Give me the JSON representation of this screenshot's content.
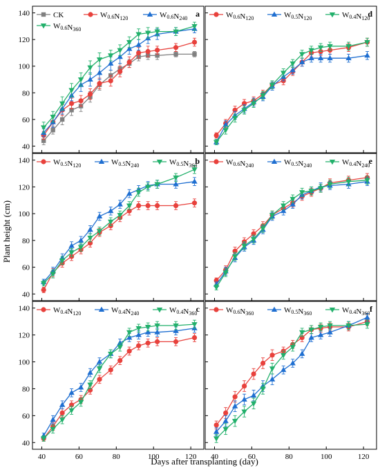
{
  "figure": {
    "xlabel": "Days after transplanting (day)",
    "ylabel": "Plant height (cm)"
  },
  "chart_data": [
    {
      "type": "line",
      "label": "a",
      "xlim": [
        35,
        127
      ],
      "ylim": [
        35,
        145
      ],
      "yticks": [
        "40",
        "60",
        "80",
        "100",
        "120",
        "140"
      ],
      "xticks": [
        "40",
        "60",
        "80",
        "100",
        "120"
      ],
      "x": [
        41,
        46,
        51,
        56,
        61,
        66,
        71,
        77,
        82,
        87,
        92,
        97,
        102,
        112,
        122
      ],
      "series": [
        {
          "name": "CK",
          "color": "#808080",
          "marker": "square",
          "values": [
            44,
            52,
            60,
            67,
            70,
            77,
            86,
            93,
            98,
            102,
            107,
            108,
            108,
            109,
            109
          ],
          "errors": [
            3,
            3,
            4,
            4,
            4,
            4,
            4,
            4,
            4,
            3,
            3,
            3,
            3,
            2,
            2
          ]
        },
        {
          "name": "W0.6N120",
          "color": "#e8413c",
          "marker": "circle",
          "values": [
            48,
            58,
            67,
            72,
            74,
            79,
            87,
            89,
            96,
            103,
            110,
            111,
            112,
            114,
            118
          ],
          "errors": [
            3,
            4,
            4,
            4,
            4,
            4,
            4,
            4,
            4,
            4,
            4,
            4,
            3,
            3,
            3
          ]
        },
        {
          "name": "W0.6N240",
          "color": "#1f6fd1",
          "marker": "triangle-up",
          "values": [
            50,
            58,
            68,
            78,
            86,
            90,
            95,
            102,
            107,
            113,
            116,
            121,
            124,
            126,
            128
          ],
          "errors": [
            3,
            4,
            4,
            4,
            5,
            5,
            5,
            5,
            5,
            4,
            4,
            4,
            4,
            3,
            3
          ]
        },
        {
          "name": "W0.6N360",
          "color": "#22b06b",
          "marker": "triangle-down",
          "values": [
            54,
            62,
            72,
            82,
            90,
            99,
            105,
            108,
            112,
            118,
            124,
            125,
            126,
            126,
            130
          ],
          "errors": [
            4,
            4,
            5,
            5,
            5,
            5,
            5,
            4,
            4,
            4,
            4,
            4,
            3,
            3,
            3
          ]
        }
      ]
    },
    {
      "type": "line",
      "label": "d",
      "xlim": [
        35,
        127
      ],
      "ylim": [
        35,
        145
      ],
      "yticks": [
        "40",
        "60",
        "80",
        "100",
        "120",
        "140"
      ],
      "xticks": [
        "40",
        "60",
        "80",
        "100",
        "120"
      ],
      "x": [
        41,
        46,
        51,
        56,
        61,
        66,
        71,
        77,
        82,
        87,
        92,
        97,
        102,
        112,
        122
      ],
      "series": [
        {
          "name": "W0.6N120",
          "color": "#e8413c",
          "marker": "circle",
          "values": [
            48,
            57,
            67,
            72,
            74,
            79,
            86,
            89,
            96,
            103,
            110,
            111,
            112,
            114,
            118
          ],
          "errors": [
            2,
            3,
            3,
            3,
            3,
            3,
            3,
            3,
            3,
            3,
            3,
            3,
            3,
            3,
            3
          ]
        },
        {
          "name": "W0.5N120",
          "color": "#1f6fd1",
          "marker": "triangle-up",
          "values": [
            43,
            56,
            63,
            68,
            73,
            77,
            85,
            92,
            97,
            103,
            106,
            106,
            106,
            106,
            108
          ],
          "errors": [
            2,
            3,
            3,
            3,
            3,
            3,
            3,
            3,
            3,
            3,
            3,
            3,
            3,
            3,
            3
          ]
        },
        {
          "name": "W0.4N120",
          "color": "#22b06b",
          "marker": "triangle-down",
          "values": [
            43,
            52,
            61,
            67,
            72,
            78,
            86,
            95,
            102,
            109,
            112,
            114,
            115,
            115,
            118
          ],
          "errors": [
            2,
            3,
            3,
            3,
            3,
            3,
            3,
            3,
            3,
            3,
            3,
            3,
            3,
            3,
            3
          ]
        }
      ]
    },
    {
      "type": "line",
      "label": "b",
      "xlim": [
        35,
        127
      ],
      "ylim": [
        35,
        145
      ],
      "yticks": [
        "40",
        "60",
        "80",
        "100",
        "120",
        "140"
      ],
      "xticks": [
        "40",
        "60",
        "80",
        "100",
        "120"
      ],
      "x": [
        41,
        46,
        51,
        56,
        61,
        66,
        71,
        77,
        82,
        87,
        92,
        97,
        102,
        112,
        122
      ],
      "series": [
        {
          "name": "W0.5N120",
          "color": "#e8413c",
          "marker": "circle",
          "values": [
            43,
            56,
            63,
            68,
            73,
            78,
            86,
            91,
            97,
            102,
            106,
            106,
            106,
            106,
            108
          ],
          "errors": [
            2,
            3,
            3,
            3,
            3,
            3,
            3,
            3,
            3,
            3,
            3,
            3,
            3,
            3,
            3
          ]
        },
        {
          "name": "W0.5N240",
          "color": "#1f6fd1",
          "marker": "triangle-up",
          "values": [
            49,
            57,
            67,
            76,
            80,
            88,
            98,
            102,
            107,
            115,
            118,
            121,
            122,
            122,
            124
          ],
          "errors": [
            2,
            3,
            3,
            3,
            3,
            3,
            3,
            3,
            3,
            3,
            3,
            3,
            3,
            3,
            3
          ]
        },
        {
          "name": "W0.5N360",
          "color": "#22b06b",
          "marker": "triangle-down",
          "values": [
            48,
            55,
            65,
            71,
            75,
            82,
            87,
            94,
            99,
            106,
            116,
            120,
            122,
            127,
            133
          ],
          "errors": [
            2,
            3,
            3,
            3,
            3,
            3,
            3,
            3,
            3,
            3,
            3,
            3,
            3,
            3,
            3
          ]
        }
      ]
    },
    {
      "type": "line",
      "label": "e",
      "xlim": [
        35,
        127
      ],
      "ylim": [
        35,
        145
      ],
      "yticks": [
        "40",
        "60",
        "80",
        "100",
        "120",
        "140"
      ],
      "xticks": [
        "40",
        "60",
        "80",
        "100",
        "120"
      ],
      "x": [
        41,
        46,
        51,
        56,
        61,
        66,
        71,
        77,
        82,
        87,
        92,
        97,
        102,
        112,
        122
      ],
      "series": [
        {
          "name": "W0.6N240",
          "color": "#e8413c",
          "marker": "circle",
          "values": [
            50,
            58,
            72,
            79,
            85,
            91,
            99,
            104,
            108,
            113,
            116,
            119,
            123,
            125,
            127
          ],
          "errors": [
            2,
            3,
            3,
            3,
            3,
            3,
            3,
            3,
            3,
            3,
            3,
            3,
            3,
            3,
            3
          ]
        },
        {
          "name": "W0.5N240",
          "color": "#1f6fd1",
          "marker": "triangle-up",
          "values": [
            47,
            57,
            67,
            75,
            80,
            88,
            98,
            102,
            107,
            114,
            117,
            120,
            121,
            122,
            124
          ],
          "errors": [
            2,
            3,
            3,
            3,
            3,
            3,
            3,
            3,
            3,
            3,
            3,
            3,
            3,
            3,
            3
          ]
        },
        {
          "name": "W0.4N240",
          "color": "#22b06b",
          "marker": "triangle-down",
          "values": [
            45,
            56,
            68,
            76,
            81,
            89,
            99,
            106,
            111,
            116,
            117,
            119,
            122,
            124,
            125
          ],
          "errors": [
            2,
            3,
            3,
            3,
            3,
            3,
            3,
            3,
            3,
            3,
            3,
            3,
            3,
            3,
            3
          ]
        }
      ]
    },
    {
      "type": "line",
      "label": "c",
      "xlim": [
        35,
        127
      ],
      "ylim": [
        35,
        145
      ],
      "yticks": [
        "40",
        "60",
        "80",
        "100",
        "120",
        "140"
      ],
      "xticks": [
        "40",
        "60",
        "80",
        "100",
        "120"
      ],
      "x": [
        41,
        46,
        51,
        56,
        61,
        66,
        71,
        77,
        82,
        87,
        92,
        97,
        102,
        112,
        122
      ],
      "series": [
        {
          "name": "W0.4N120",
          "color": "#e8413c",
          "marker": "circle",
          "values": [
            43,
            52,
            62,
            68,
            72,
            79,
            87,
            94,
            101,
            108,
            112,
            114,
            115,
            115,
            118
          ],
          "errors": [
            2,
            3,
            3,
            3,
            3,
            3,
            3,
            3,
            3,
            3,
            3,
            3,
            3,
            3,
            3
          ]
        },
        {
          "name": "W0.4N240",
          "color": "#1f6fd1",
          "marker": "triangle-up",
          "values": [
            45,
            57,
            68,
            77,
            81,
            92,
            100,
            106,
            114,
            118,
            120,
            122,
            122,
            123,
            125
          ],
          "errors": [
            2,
            3,
            3,
            3,
            3,
            3,
            3,
            3,
            3,
            3,
            3,
            3,
            3,
            3,
            3
          ]
        },
        {
          "name": "W0.4N360",
          "color": "#22b06b",
          "marker": "triangle-down",
          "values": [
            43,
            50,
            57,
            64,
            70,
            83,
            95,
            106,
            111,
            122,
            125,
            126,
            127,
            127,
            128
          ],
          "errors": [
            2,
            3,
            3,
            3,
            3,
            3,
            3,
            3,
            3,
            3,
            3,
            3,
            3,
            3,
            3
          ]
        }
      ]
    },
    {
      "type": "line",
      "label": "f",
      "xlim": [
        35,
        127
      ],
      "ylim": [
        35,
        145
      ],
      "yticks": [
        "40",
        "60",
        "80",
        "100",
        "120",
        "140"
      ],
      "xticks": [
        "40",
        "60",
        "80",
        "100",
        "120"
      ],
      "x": [
        41,
        46,
        51,
        56,
        61,
        66,
        71,
        77,
        82,
        87,
        92,
        97,
        102,
        112,
        122
      ],
      "series": [
        {
          "name": "W0.6N360",
          "color": "#e8413c",
          "marker": "circle",
          "values": [
            53,
            62,
            74,
            82,
            91,
            99,
            105,
            108,
            113,
            118,
            124,
            125,
            126,
            126,
            130
          ],
          "errors": [
            3,
            4,
            4,
            4,
            4,
            4,
            4,
            3,
            3,
            3,
            3,
            3,
            3,
            3,
            3
          ]
        },
        {
          "name": "W0.5N360",
          "color": "#1f6fd1",
          "marker": "triangle-up",
          "values": [
            48,
            56,
            67,
            72,
            75,
            82,
            87,
            94,
            99,
            106,
            118,
            120,
            122,
            127,
            133
          ],
          "errors": [
            3,
            4,
            4,
            4,
            4,
            4,
            4,
            3,
            3,
            3,
            3,
            3,
            3,
            3,
            3
          ]
        },
        {
          "name": "W0.4N360",
          "color": "#22b06b",
          "marker": "triangle-down",
          "values": [
            43,
            50,
            56,
            63,
            69,
            80,
            95,
            105,
            111,
            122,
            124,
            126,
            127,
            127,
            128
          ],
          "errors": [
            3,
            4,
            4,
            4,
            4,
            4,
            4,
            3,
            3,
            3,
            3,
            3,
            3,
            3,
            3
          ]
        }
      ]
    }
  ]
}
